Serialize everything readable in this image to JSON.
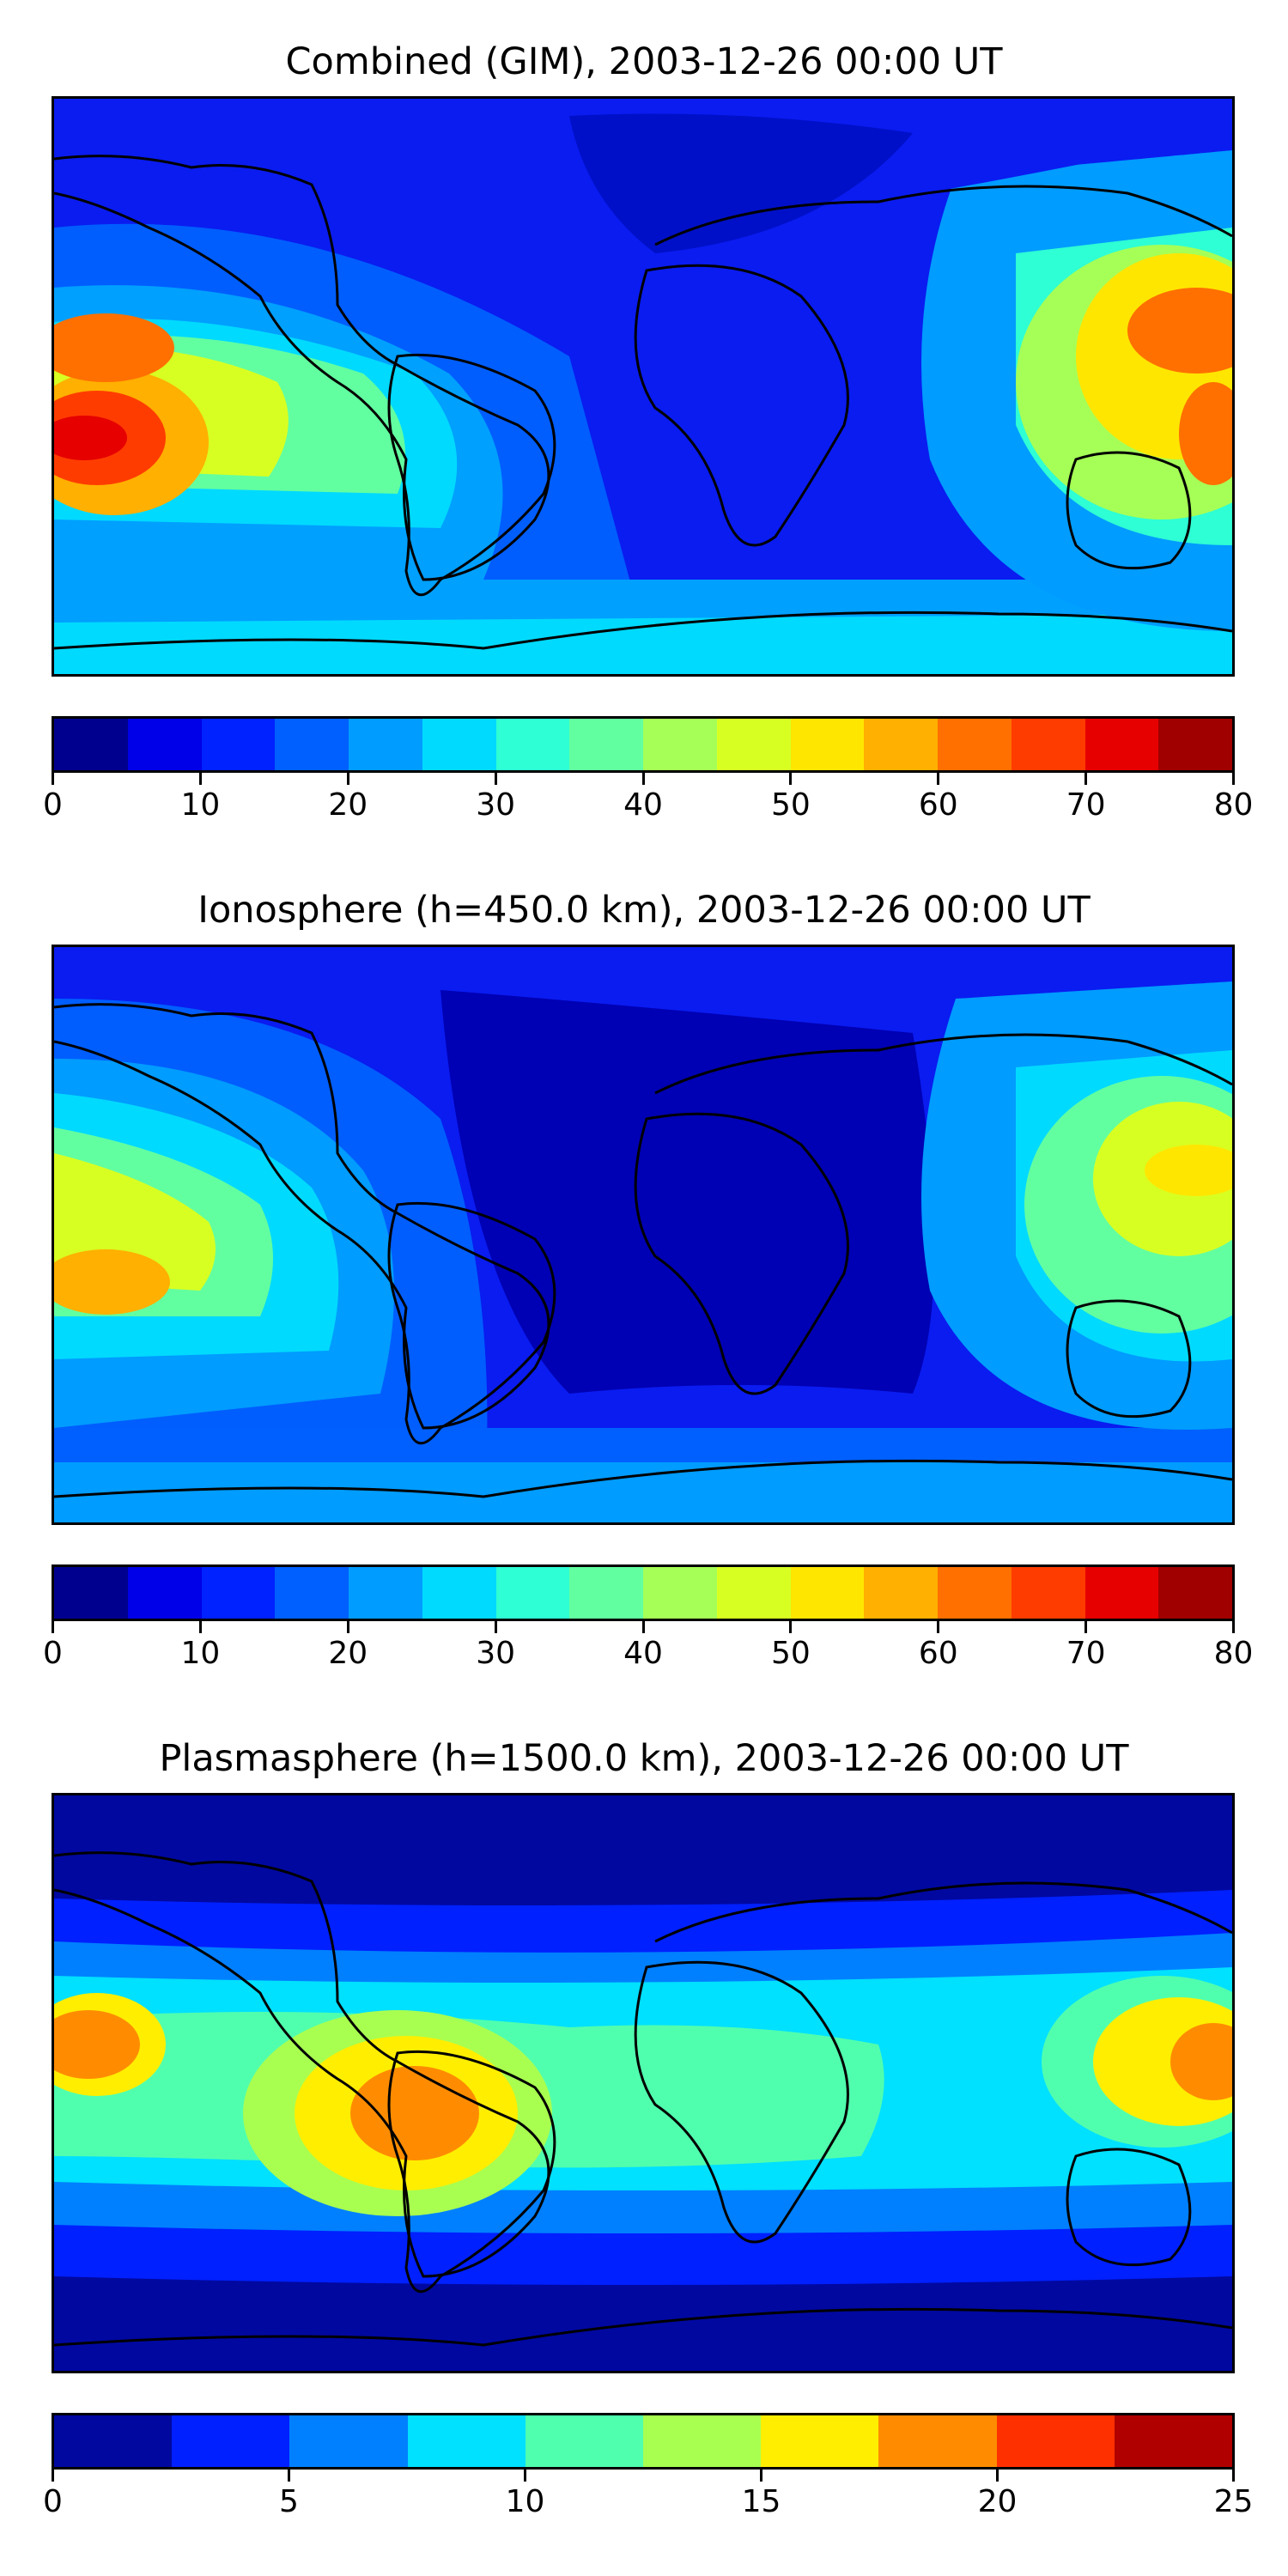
{
  "panels": [
    {
      "title": "Combined (GIM), 2003-12-26 00:00 UT",
      "colorbar": {
        "min": 0,
        "max": 80,
        "step": 5,
        "colors": [
          "#00008f",
          "#0000e8",
          "#0022ff",
          "#0060ff",
          "#009cff",
          "#00daff",
          "#2effd4",
          "#62ffa0",
          "#a6ff56",
          "#d8ff22",
          "#ffe600",
          "#ffb000",
          "#ff7000",
          "#ff3c00",
          "#e60000",
          "#a00000"
        ],
        "tick_labels": [
          "0",
          "10",
          "20",
          "30",
          "40",
          "50",
          "60",
          "70",
          "80"
        ]
      }
    },
    {
      "title": "Ionosphere  (h=450.0 km), 2003-12-26 00:00 UT",
      "colorbar": {
        "min": 0,
        "max": 80,
        "step": 5,
        "colors": [
          "#00008f",
          "#0000e8",
          "#0022ff",
          "#0060ff",
          "#009cff",
          "#00daff",
          "#2effd4",
          "#62ffa0",
          "#a6ff56",
          "#d8ff22",
          "#ffe600",
          "#ffb000",
          "#ff7000",
          "#ff3c00",
          "#e60000",
          "#a00000"
        ],
        "tick_labels": [
          "0",
          "10",
          "20",
          "30",
          "40",
          "50",
          "60",
          "70",
          "80"
        ]
      }
    },
    {
      "title": "Plasmasphere (h=1500.0 km), 2003-12-26 00:00 UT",
      "colorbar": {
        "min": 0,
        "max": 25,
        "step": 2.5,
        "colors": [
          "#0008a0",
          "#0020ff",
          "#0080ff",
          "#00e0ff",
          "#50ffae",
          "#a8ff50",
          "#ffee00",
          "#ff8c00",
          "#ff3000",
          "#b00000"
        ],
        "tick_labels": [
          "0",
          "5",
          "10",
          "15",
          "20",
          "25"
        ]
      }
    }
  ]
}
